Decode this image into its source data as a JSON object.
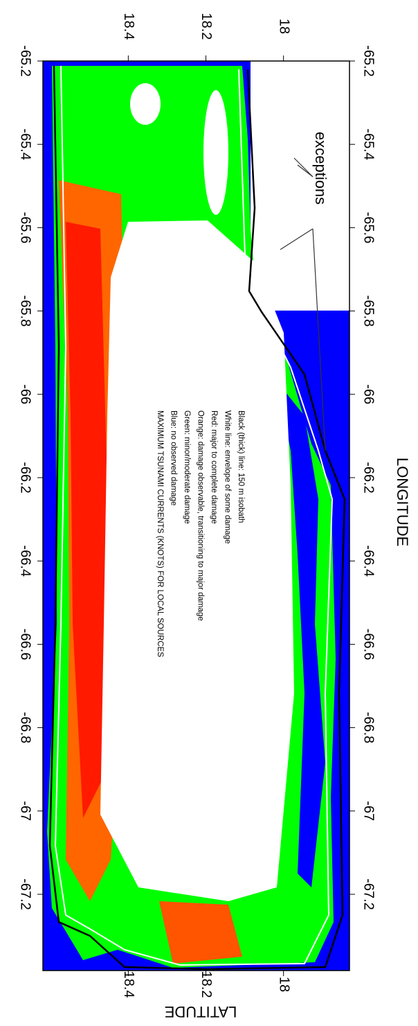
{
  "map": {
    "legend": [
      "MAXIMUM TSUNAMI CURRENTS (KNOTS) FOR LOCAL SOURCES",
      "Blue: no observed damage",
      "Green: minor/moderate damage",
      "Orange: damage observable, transitioning to major damage",
      "Red: major to complete damage",
      "White line: envelope of some damage",
      "Black (thick) line: 150 m isobath"
    ],
    "annotation": "exceptions",
    "xlabel": "LONGITUDE",
    "ylabel": "LATITUDE",
    "lonlim": [
      -65.2,
      -67.383
    ],
    "lon_ticks": [
      -65.2,
      -65.4,
      -65.6,
      -65.8,
      -66,
      -66.2,
      -66.4,
      -66.6,
      -66.8,
      -67,
      -67.2
    ],
    "latlim": [
      18.62,
      17.83
    ],
    "lat_ticks": [
      18.4,
      18.2,
      18
    ]
  }
}
